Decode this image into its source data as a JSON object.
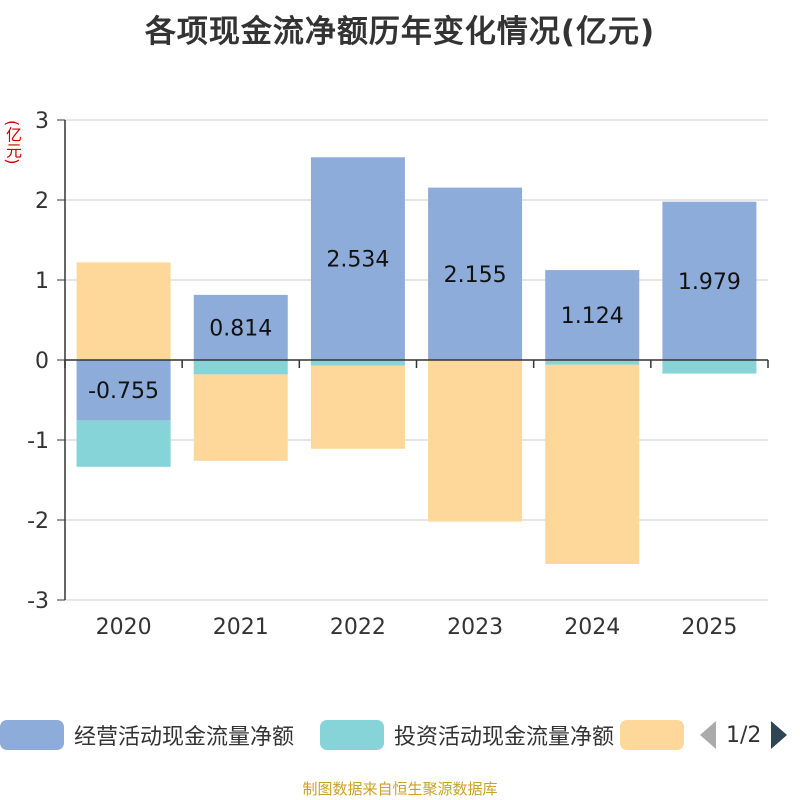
{
  "chart_data": {
    "type": "bar",
    "stacked": true,
    "title": "各项现金流净额历年变化情况(亿元)",
    "ylabel": "(亿元)",
    "categories": [
      "2020",
      "2021",
      "2022",
      "2023",
      "2024",
      "2025"
    ],
    "ylim": [
      -3,
      3
    ],
    "yticks": [
      3,
      2,
      1,
      0,
      -1,
      -2,
      -3
    ],
    "series": [
      {
        "name": "经营活动现金流量净额",
        "color": "#8eacd9",
        "values": [
          -0.755,
          0.814,
          2.534,
          2.155,
          1.124,
          1.979
        ],
        "labels": [
          "-0.755",
          "0.814",
          "2.534",
          "2.155",
          "1.124",
          "1.979"
        ]
      },
      {
        "name": "投资活动现金流量净额",
        "color": "#86d4d8",
        "values": [
          -0.58,
          -0.18,
          -0.07,
          0.0,
          -0.06,
          -0.17
        ]
      },
      {
        "name": "",
        "color": "#fdd89a",
        "values": [
          1.22,
          -1.08,
          -1.04,
          -2.02,
          -2.49,
          0.0
        ]
      }
    ]
  },
  "legend": {
    "page": "1/2"
  },
  "source": "制图数据来自恒生聚源数据库"
}
